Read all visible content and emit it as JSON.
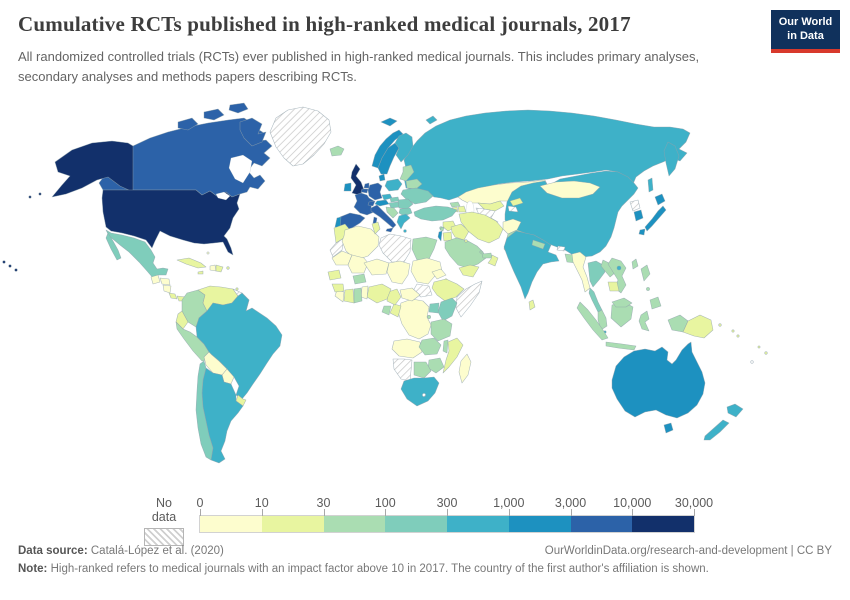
{
  "header": {
    "title": "Cumulative RCTs published in high-ranked medical journals, 2017",
    "subtitle": "All randomized controlled trials (RCTs) ever published in high-ranked medical journals. This includes primary analyses, secondary analyses and methods papers describing RCTs.",
    "logo": {
      "line1": "Our World",
      "line2": "in Data",
      "bg_color": "#10315c",
      "accent_color": "#d8392c"
    }
  },
  "legend": {
    "no_data_label": "No data",
    "tick_labels": [
      "0",
      "10",
      "30",
      "100",
      "300",
      "1,000",
      "3,000",
      "10,000",
      "30,000"
    ]
  },
  "footer": {
    "source_label": "Data source:",
    "source_value": " Catalá-López et al. (2020)",
    "link": "OurWorldinData.org/research-and-development",
    "separator": " | ",
    "license": "CC BY",
    "note_label": "Note:",
    "note_value": " High-ranked refers to medical journals with an impact factor above 10 in 2017. The country of the first author's affiliation is shown."
  },
  "chart_data": {
    "type": "choropleth",
    "title": "Cumulative RCTs published in high-ranked medical journals",
    "year": 2017,
    "unit": "cumulative RCTs (count, log-binned)",
    "no_data_label": "No data",
    "bins": [
      "0-10",
      "10-30",
      "30-100",
      "100-300",
      "300-1,000",
      "1,000-3,000",
      "3,000-10,000",
      "10,000-30,000"
    ],
    "bin_colors": [
      "#fdfdce",
      "#e8f5a0",
      "#aaddb2",
      "#7fcdbb",
      "#3eb1c8",
      "#1d91c0",
      "#2c62a8",
      "#12306b"
    ],
    "countries": {
      "United States": "10,000-30,000",
      "United Kingdom": "10,000-30,000",
      "Canada": "3,000-10,000",
      "France": "3,000-10,000",
      "Germany": "3,000-10,000",
      "Netherlands": "3,000-10,000",
      "Belgium": "3,000-10,000",
      "Switzerland": "3,000-10,000",
      "Italy": "3,000-10,000",
      "Spain": "3,000-10,000",
      "Australia": "1,000-3,000",
      "Japan": "1,000-3,000",
      "South Korea": "1,000-3,000",
      "Sweden": "1,000-3,000",
      "Norway": "1,000-3,000",
      "Denmark": "1,000-3,000",
      "Ireland": "1,000-3,000",
      "Austria": "1,000-3,000",
      "Portugal": "1,000-3,000",
      "Israel": "1,000-3,000",
      "Russia": "300-1,000",
      "China": "300-1,000",
      "India": "300-1,000",
      "Brazil": "300-1,000",
      "Argentina": "300-1,000",
      "South Africa": "300-1,000",
      "New Zealand": "300-1,000",
      "Finland": "300-1,000",
      "Poland": "300-1,000",
      "Czechia": "300-1,000",
      "Greece": "300-1,000",
      "Singapore": "300-1,000",
      "Mexico": "100-300",
      "Chile": "100-300",
      "Thailand": "100-300",
      "Turkey": "100-300",
      "Ukraine": "100-300",
      "Kenya": "100-300",
      "Uganda": "100-300",
      "Slovakia": "100-300",
      "Hungary": "100-300",
      "Romania": "100-300",
      "Bulgaria": "100-300",
      "Colombia": "30-100",
      "Peru": "30-100",
      "Egypt": "30-100",
      "Ghana": "30-100",
      "Gabon": "30-100",
      "Burkina Faso": "30-100",
      "Tanzania": "30-100",
      "Zambia": "30-100",
      "Malawi": "30-100",
      "Zimbabwe": "30-100",
      "Botswana": "30-100",
      "Saudi Arabia": "30-100",
      "United Arab Emirates": "30-100",
      "Qatar": "30-100",
      "Georgia": "30-100",
      "Lebanon": "30-100",
      "Iceland": "30-100",
      "Baltic States": "30-100",
      "Belarus": "30-100",
      "Western Balkans": "30-100",
      "Cyprus": "30-100",
      "Pakistan": "30-100",
      "Nepal": "30-100",
      "Bangladesh": "30-100",
      "Vietnam": "30-100",
      "Laos": "30-100",
      "Malaysia": "30-100",
      "Indonesia": "30-100",
      "Philippines": "30-100",
      "Taiwan": "30-100",
      "Rwanda-Burundi": "30-100",
      "Venezuela": "10-30",
      "Ecuador": "10-30",
      "Uruguay": "10-30",
      "Cuba": "10-30",
      "Dominican Republic": "10-30",
      "Jamaica": "10-30",
      "Puerto Rico": "10-30",
      "Costa Rica": "10-30",
      "Panama": "10-30",
      "Trinidad and Tobago": "10-30",
      "Morocco": "10-30",
      "Tunisia": "10-30",
      "Senegal": "10-30",
      "Guinea": "10-30",
      "Ivory Coast": "10-30",
      "Nigeria": "10-30",
      "Cameroon": "10-30",
      "Congo": "10-30",
      "Ethiopia": "10-30",
      "Mozambique": "10-30",
      "Yemen": "10-30",
      "Oman": "10-30",
      "Jordan": "10-30",
      "Syria": "10-30",
      "Iraq": "10-30",
      "Iran": "10-30",
      "Kuwait": "10-30",
      "Armenia": "10-30",
      "Azerbaijan": "10-30",
      "Uzbekistan": "10-30",
      "Kyrgyzstan": "10-30",
      "Sri Lanka": "10-30",
      "Cambodia": "10-30",
      "Papua New Guinea": "10-30",
      "Solomon Islands": "10-30",
      "Fiji": "10-30",
      "Bolivia": "0-10",
      "Paraguay": "0-10",
      "Guatemala": "0-10",
      "Honduras": "0-10",
      "Nicaragua": "0-10",
      "Haiti": "0-10",
      "Bahamas": "0-10",
      "Algeria": "0-10",
      "Mauritania": "0-10",
      "Mali": "0-10",
      "Niger": "0-10",
      "Chad": "0-10",
      "Sudan": "0-10",
      "Eritrea": "0-10",
      "Djibouti": "0-10",
      "Benin-Togo": "0-10",
      "Liberia-Sierra Leone": "0-10",
      "DR Congo": "0-10",
      "Central African Republic": "0-10",
      "Angola": "0-10",
      "Madagascar": "0-10",
      "Kazakhstan": "0-10",
      "Mongolia": "0-10",
      "Afghanistan": "0-10",
      "Myanmar": "0-10",
      "Greenland": "No data",
      "Guyana-Suriname-French Guiana": "No data",
      "Libya": "No data",
      "Western Sahara": "No data",
      "South Sudan": "No data",
      "Somalia": "No data",
      "Namibia": "No data",
      "Lesotho": "No data",
      "Turkmenistan": "No data",
      "Tajikistan": "No data",
      "North Korea": "No data",
      "Bhutan": "No data",
      "New Caledonia": "No data"
    }
  }
}
